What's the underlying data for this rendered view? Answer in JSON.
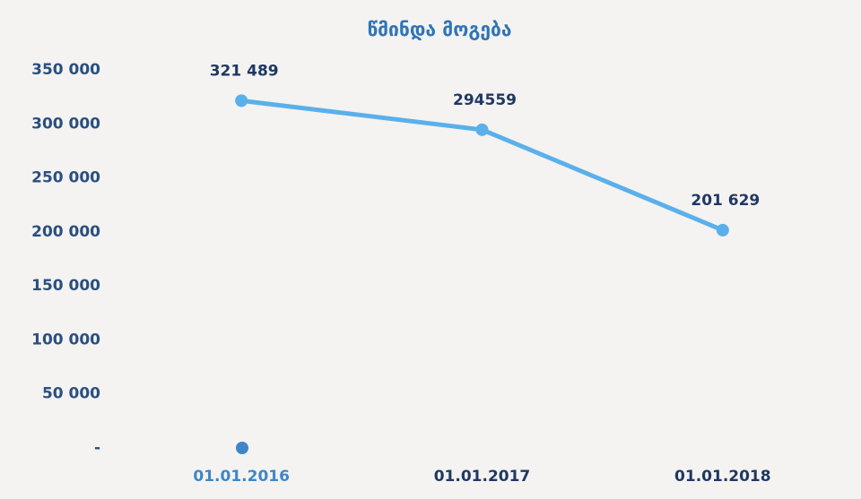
{
  "chart_data": {
    "type": "line",
    "title": "წმინდა მოგება",
    "categories": [
      "01.01.2016",
      "01.01.2017",
      "01.01.2018"
    ],
    "series": [
      {
        "color": "#5ab0ea",
        "values": [
          321489,
          294559,
          201629
        ],
        "value_labels": [
          "321 489",
          "294559",
          "201 629"
        ]
      }
    ],
    "category_label_colors": [
      "#3f86c8",
      "#1f3864",
      "#1f3864"
    ],
    "ylim": [
      0,
      350000
    ],
    "yticks": [
      {
        "value": 0,
        "label": "-"
      },
      {
        "value": 50000,
        "label": "50 000"
      },
      {
        "value": 100000,
        "label": "100 000"
      },
      {
        "value": 150000,
        "label": "150 000"
      },
      {
        "value": 200000,
        "label": "200 000"
      },
      {
        "value": 250000,
        "label": "250 000"
      },
      {
        "value": 300000,
        "label": "300 000"
      },
      {
        "value": 350000,
        "label": "350 000"
      }
    ],
    "grid": false
  }
}
